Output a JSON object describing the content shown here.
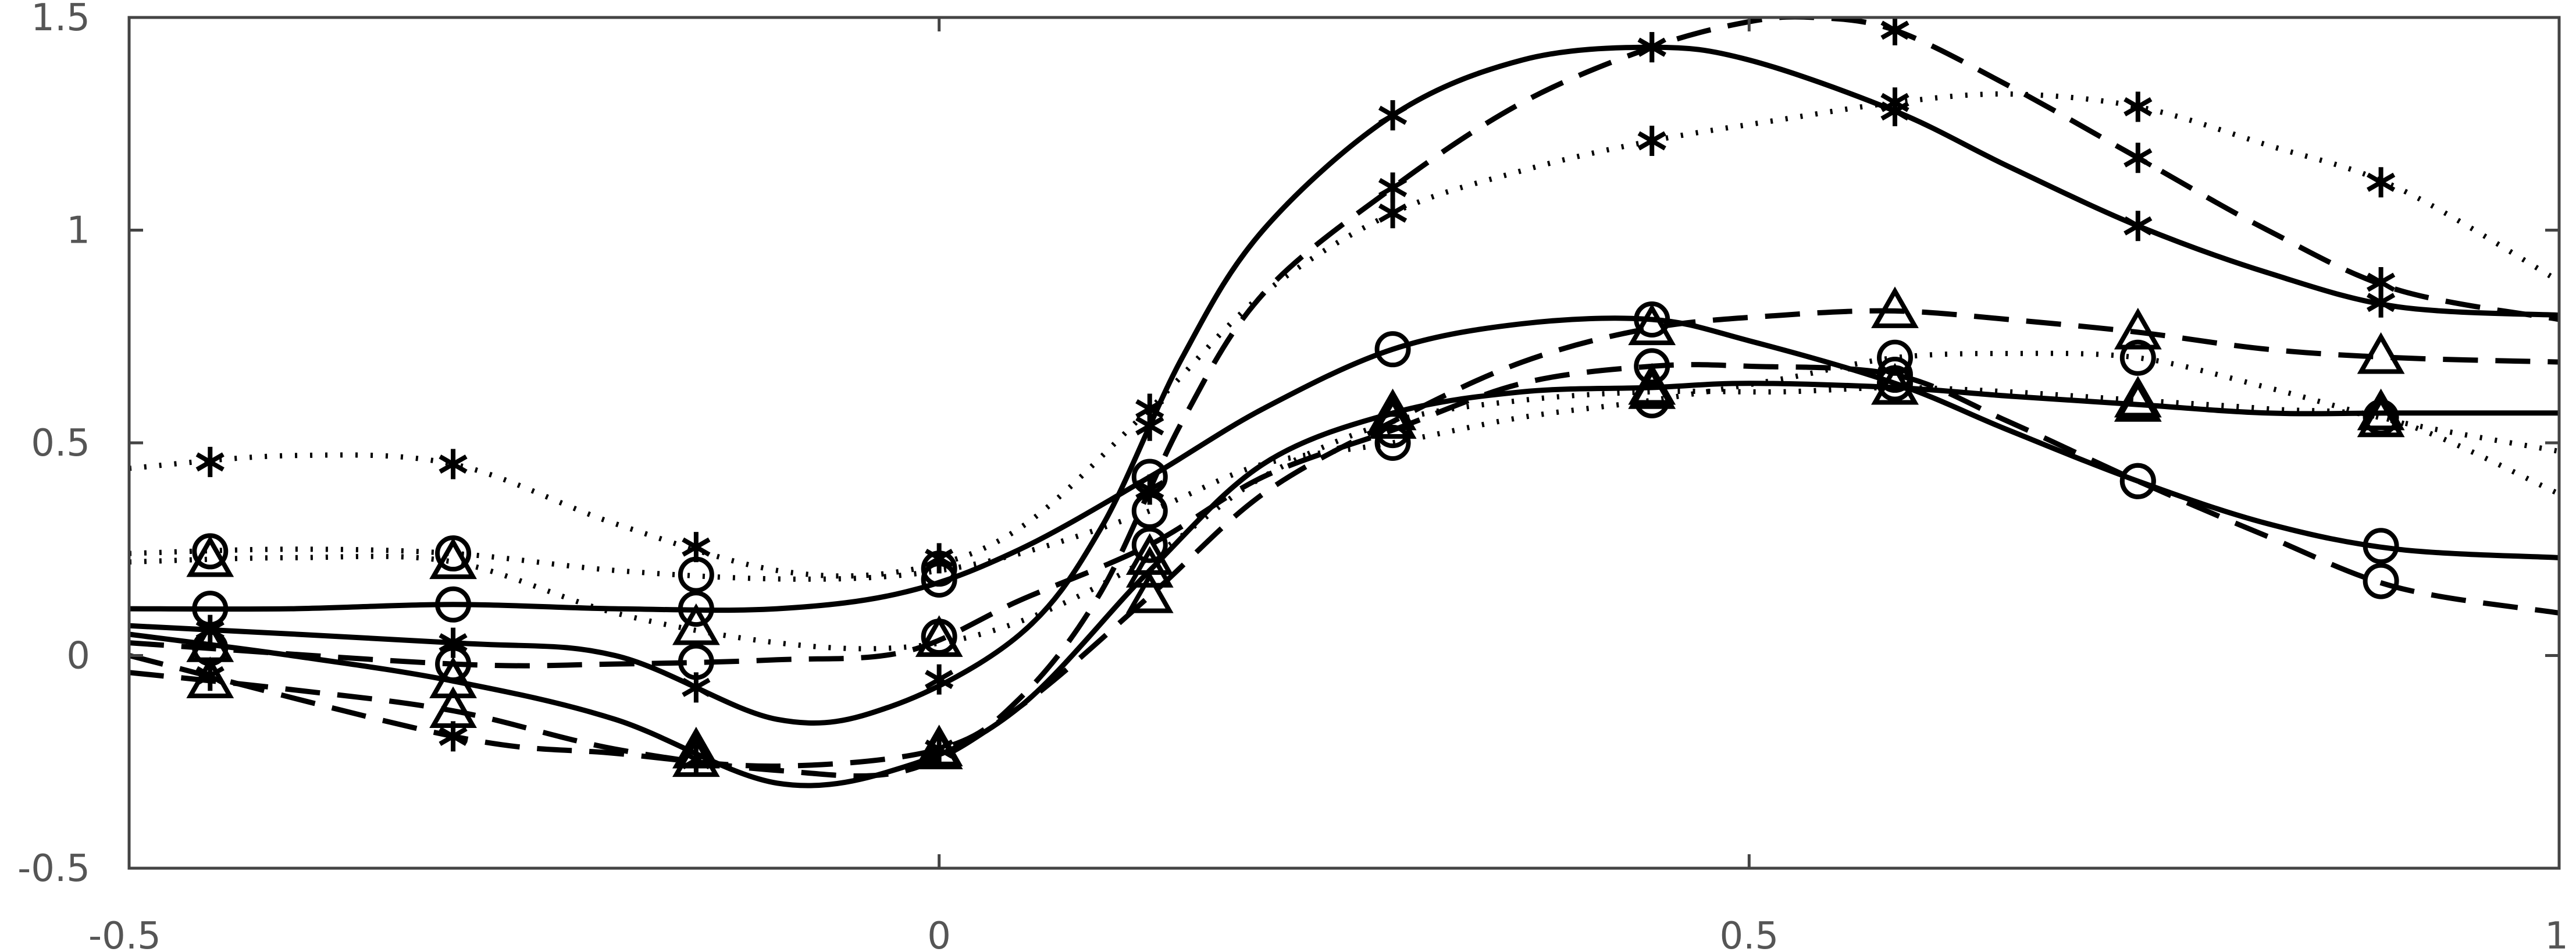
{
  "chart_data": {
    "type": "line",
    "title": "",
    "xlabel": "",
    "ylabel": "",
    "xlim": [
      -0.5,
      1
    ],
    "ylim": [
      -0.5,
      1.5
    ],
    "xticks": [
      "-0.5",
      "0",
      "0.5",
      "1"
    ],
    "yticks": [
      "-0.5",
      "0",
      "0.5",
      "1",
      "1.5"
    ],
    "grid": false,
    "legend": "none",
    "line_color": "#000000",
    "axis_color": "#444444",
    "tick_label_color": "#555555",
    "series": [
      {
        "style": "solid",
        "marker": "star",
        "x": [
          -0.5,
          -0.3,
          -0.2,
          -0.1,
          -0.03,
          0.05,
          0.1,
          0.15,
          0.2,
          0.28,
          0.36,
          0.44,
          0.5,
          0.59,
          0.66,
          0.74,
          0.82,
          0.9,
          1.0
        ],
        "y": [
          0.07,
          0.03,
          0.0,
          -0.15,
          -0.12,
          0.05,
          0.3,
          0.7,
          1.0,
          1.27,
          1.4,
          1.43,
          1.4,
          1.28,
          1.15,
          1.01,
          0.9,
          0.82,
          0.8
        ]
      },
      {
        "style": "dashed",
        "marker": "star",
        "x": [
          -0.5,
          -0.3,
          -0.2,
          -0.1,
          0.0,
          0.05,
          0.1,
          0.15,
          0.2,
          0.28,
          0.36,
          0.44,
          0.5,
          0.54,
          0.59,
          0.66,
          0.74,
          0.82,
          0.9,
          1.0
        ],
        "y": [
          0.0,
          -0.19,
          -0.23,
          -0.26,
          -0.22,
          -0.1,
          0.15,
          0.55,
          0.85,
          1.1,
          1.3,
          1.43,
          1.49,
          1.5,
          1.47,
          1.34,
          1.17,
          1.0,
          0.86,
          0.79
        ]
      },
      {
        "style": "dotted",
        "marker": "star",
        "x": [
          -0.5,
          -0.4,
          -0.3,
          -0.2,
          -0.1,
          -0.02,
          0.05,
          0.13,
          0.2,
          0.28,
          0.36,
          0.44,
          0.52,
          0.59,
          0.66,
          0.74,
          0.82,
          0.9,
          1.0
        ],
        "y": [
          0.44,
          0.47,
          0.45,
          0.31,
          0.2,
          0.2,
          0.3,
          0.58,
          0.85,
          1.04,
          1.14,
          1.21,
          1.26,
          1.3,
          1.32,
          1.29,
          1.2,
          1.1,
          0.88
        ]
      },
      {
        "style": "solid",
        "marker": "circle",
        "x": [
          -0.5,
          -0.4,
          -0.3,
          -0.2,
          -0.1,
          -0.02,
          0.05,
          0.13,
          0.2,
          0.28,
          0.36,
          0.44,
          0.5,
          0.59,
          0.66,
          0.74,
          0.82,
          0.9,
          1.0
        ],
        "y": [
          0.11,
          0.11,
          0.12,
          0.11,
          0.11,
          0.15,
          0.25,
          0.42,
          0.58,
          0.72,
          0.78,
          0.79,
          0.74,
          0.64,
          0.53,
          0.41,
          0.31,
          0.25,
          0.23
        ]
      },
      {
        "style": "dashed",
        "marker": "circle",
        "x": [
          -0.5,
          -0.3,
          -0.2,
          -0.1,
          -0.02,
          0.05,
          0.13,
          0.2,
          0.28,
          0.36,
          0.44,
          0.5,
          0.59,
          0.66,
          0.74,
          0.82,
          0.9,
          1.0
        ],
        "y": [
          0.03,
          -0.02,
          -0.02,
          -0.01,
          0.01,
          0.13,
          0.26,
          0.42,
          0.53,
          0.64,
          0.68,
          0.68,
          0.66,
          0.55,
          0.41,
          0.28,
          0.16,
          0.1
        ]
      },
      {
        "style": "dotted",
        "marker": "circle",
        "x": [
          -0.5,
          -0.4,
          -0.3,
          -0.2,
          -0.1,
          -0.02,
          0.05,
          0.13,
          0.2,
          0.28,
          0.36,
          0.44,
          0.52,
          0.59,
          0.66,
          0.74,
          0.82,
          0.9,
          1.0
        ],
        "y": [
          0.24,
          0.25,
          0.24,
          0.2,
          0.18,
          0.19,
          0.24,
          0.34,
          0.45,
          0.5,
          0.56,
          0.6,
          0.65,
          0.7,
          0.71,
          0.7,
          0.63,
          0.55,
          0.48
        ]
      },
      {
        "style": "solid",
        "marker": "triangle",
        "x": [
          -0.5,
          -0.4,
          -0.3,
          -0.2,
          -0.1,
          -0.02,
          0.05,
          0.13,
          0.2,
          0.28,
          0.36,
          0.44,
          0.5,
          0.59,
          0.66,
          0.74,
          0.82,
          0.9,
          1.0
        ],
        "y": [
          0.05,
          0.0,
          -0.06,
          -0.15,
          -0.3,
          -0.26,
          -0.12,
          0.2,
          0.45,
          0.57,
          0.62,
          0.63,
          0.64,
          0.63,
          0.61,
          0.59,
          0.57,
          0.57,
          0.57
        ]
      },
      {
        "style": "dashed",
        "marker": "triangle",
        "x": [
          -0.5,
          -0.4,
          -0.3,
          -0.2,
          -0.1,
          -0.02,
          0.05,
          0.13,
          0.2,
          0.28,
          0.36,
          0.44,
          0.52,
          0.59,
          0.66,
          0.74,
          0.82,
          0.9,
          1.0
        ],
        "y": [
          -0.04,
          -0.08,
          -0.13,
          -0.22,
          -0.27,
          -0.27,
          -0.12,
          0.14,
          0.38,
          0.55,
          0.69,
          0.77,
          0.8,
          0.81,
          0.79,
          0.76,
          0.72,
          0.7,
          0.69
        ]
      },
      {
        "style": "dotted",
        "marker": "triangle",
        "x": [
          -0.5,
          -0.4,
          -0.3,
          -0.2,
          -0.1,
          -0.02,
          0.05,
          0.13,
          0.2,
          0.28,
          0.36,
          0.44,
          0.52,
          0.59,
          0.66,
          0.74,
          0.82,
          0.9,
          1.0
        ],
        "y": [
          0.22,
          0.23,
          0.22,
          0.1,
          0.03,
          0.02,
          0.08,
          0.23,
          0.42,
          0.55,
          0.6,
          0.62,
          0.62,
          0.63,
          0.62,
          0.6,
          0.58,
          0.55,
          0.38
        ]
      }
    ]
  }
}
